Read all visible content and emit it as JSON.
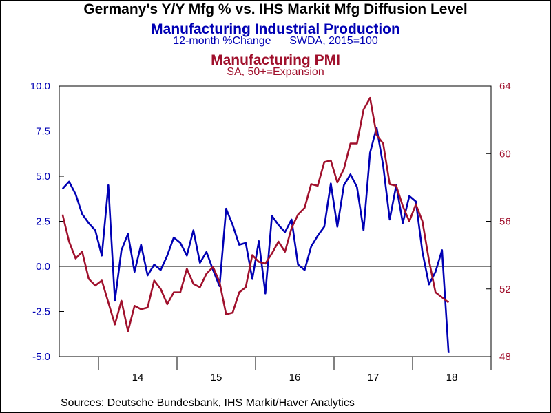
{
  "page": {
    "title": "Germany's Y/Y Mfg % vs. IHS Markit Mfg Diffusion Level",
    "source": "Sources:  Deutsche Bundesbank, IHS Markit/Haver Analytics"
  },
  "chart_data": {
    "type": "line",
    "title": "Germany's Y/Y Mfg % vs. IHS Markit Mfg Diffusion Level",
    "x_start": "2013-07",
    "x_end": "2018-12",
    "x_ticks": [
      "14",
      "15",
      "16",
      "17",
      "18"
    ],
    "y_left": {
      "lim": [
        -5.0,
        10.0
      ],
      "ticks": [
        "10.0",
        "7.5",
        "5.0",
        "2.5",
        "0.0",
        "-2.5",
        "-5.0"
      ]
    },
    "y_right": {
      "lim": [
        48,
        64
      ],
      "ticks": [
        "64",
        "60",
        "56",
        "52",
        "48"
      ]
    },
    "zero_line": true,
    "series": [
      {
        "name": "Manufacturing Industrial Production",
        "note": "12-month %Change      SWDA, 2015=100",
        "axis": "left",
        "color": "#0000b4",
        "start": "2013-07",
        "values": [
          4.3,
          4.7,
          4.0,
          2.9,
          2.4,
          2.0,
          0.6,
          4.5,
          -1.9,
          0.9,
          1.8,
          -0.3,
          1.2,
          -0.5,
          0.1,
          -0.2,
          0.6,
          1.6,
          1.3,
          0.6,
          2.0,
          0.2,
          0.8,
          -0.2,
          -1.1,
          3.2,
          2.3,
          1.2,
          1.3,
          -0.7,
          1.4,
          -1.5,
          2.8,
          2.3,
          1.9,
          2.6,
          0.1,
          -0.2,
          1.1,
          1.7,
          2.2,
          4.6,
          2.2,
          4.5,
          5.1,
          4.4,
          2.0,
          6.3,
          7.7,
          5.6,
          2.6,
          4.5,
          2.4,
          3.9,
          3.6,
          0.8,
          -1.0,
          -0.3,
          0.9,
          -4.8
        ]
      },
      {
        "name": "Manufacturing PMI",
        "note": "SA, 50+=Expansion",
        "axis": "right",
        "color": "#a0102c",
        "start": "2013-07",
        "values": [
          56.4,
          54.8,
          53.8,
          54.2,
          52.6,
          52.2,
          52.5,
          51.2,
          49.9,
          51.3,
          49.5,
          51.0,
          50.8,
          50.9,
          52.5,
          52.0,
          51.1,
          51.8,
          51.8,
          53.2,
          52.3,
          52.1,
          52.9,
          53.3,
          52.4,
          50.5,
          50.6,
          51.8,
          52.1,
          54.0,
          53.6,
          53.5,
          54.1,
          54.8,
          54.2,
          55.6,
          56.4,
          56.8,
          58.2,
          58.1,
          59.5,
          59.6,
          58.3,
          59.1,
          60.6,
          60.6,
          62.6,
          63.3,
          61.1,
          60.6,
          58.2,
          58.1,
          56.9,
          56.0,
          57.0,
          56.0,
          53.7,
          51.8,
          51.5,
          51.2
        ]
      }
    ]
  }
}
